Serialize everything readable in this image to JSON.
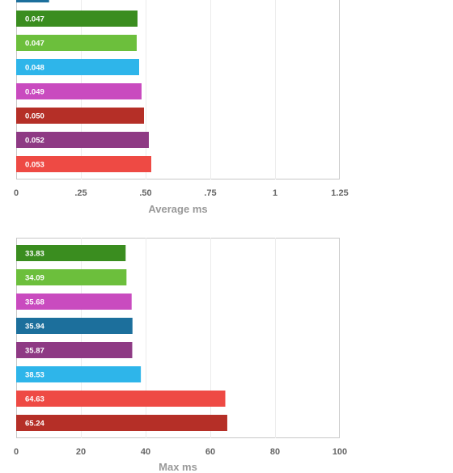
{
  "chart_data": [
    {
      "type": "bar",
      "orientation": "horizontal",
      "xlabel": "Average ms",
      "xlim": [
        0,
        1.25
      ],
      "x_ticks": [
        "0",
        ".25",
        ".50",
        ".75",
        "1",
        "1.25"
      ],
      "x_tick_values": [
        0,
        0.25,
        0.5,
        0.75,
        1,
        1.25
      ],
      "grid": true,
      "partial_top_bar": {
        "value": 0.041,
        "color": "#1c6f9c"
      },
      "bars": [
        {
          "label": "0.047",
          "value": 0.047,
          "color": "#3a8d1f"
        },
        {
          "label": "0.047",
          "value": 0.047,
          "color": "#6cbf3c"
        },
        {
          "label": "0.048",
          "value": 0.048,
          "color": "#2eb5ea"
        },
        {
          "label": "0.049",
          "value": 0.049,
          "color": "#c94bbf"
        },
        {
          "label": "0.050",
          "value": 0.05,
          "color": "#b52f27"
        },
        {
          "label": "0.052",
          "value": 0.052,
          "color": "#8e3a84"
        },
        {
          "label": "0.053",
          "value": 0.053,
          "color": "#ee4a44"
        }
      ]
    },
    {
      "type": "bar",
      "orientation": "horizontal",
      "xlabel": "Max ms",
      "xlim": [
        0,
        100
      ],
      "x_ticks": [
        "0",
        "20",
        "40",
        "60",
        "80",
        "100"
      ],
      "x_tick_values": [
        0,
        20,
        40,
        60,
        80,
        100
      ],
      "grid": true,
      "bars": [
        {
          "label": "33.83",
          "value": 33.83,
          "color": "#3a8d1f"
        },
        {
          "label": "34.09",
          "value": 34.09,
          "color": "#6cbf3c"
        },
        {
          "label": "35.68",
          "value": 35.68,
          "color": "#c94bbf"
        },
        {
          "label": "35.94",
          "value": 35.94,
          "color": "#1c6f9c"
        },
        {
          "label": "35.87",
          "value": 35.87,
          "color": "#8e3a84"
        },
        {
          "label": "38.53",
          "value": 38.53,
          "color": "#2eb5ea"
        },
        {
          "label": "64.63",
          "value": 64.63,
          "color": "#ee4a44"
        },
        {
          "label": "65.24",
          "value": 65.24,
          "color": "#b52f27"
        }
      ]
    }
  ]
}
